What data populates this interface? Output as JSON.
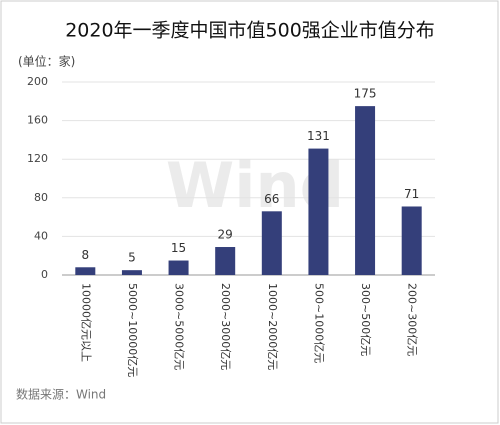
{
  "chart_data": {
    "type": "bar",
    "title": "2020年一季度中国市值500强企业市值分布",
    "unit_label": "(单位：家)",
    "source": "数据来源：Wind",
    "watermark": "Wind",
    "categories": [
      "10000亿元以上",
      "5000~10000亿元",
      "3000~5000亿元",
      "2000~3000亿元",
      "1000~2000亿元",
      "500~1000亿元",
      "300~500亿元",
      "200~300亿元"
    ],
    "values": [
      8,
      5,
      15,
      29,
      66,
      131,
      175,
      71
    ],
    "color": "#343f7a",
    "ylim": [
      0,
      200
    ],
    "yticks": [
      0,
      40,
      80,
      120,
      160,
      200
    ],
    "grid": true
  }
}
